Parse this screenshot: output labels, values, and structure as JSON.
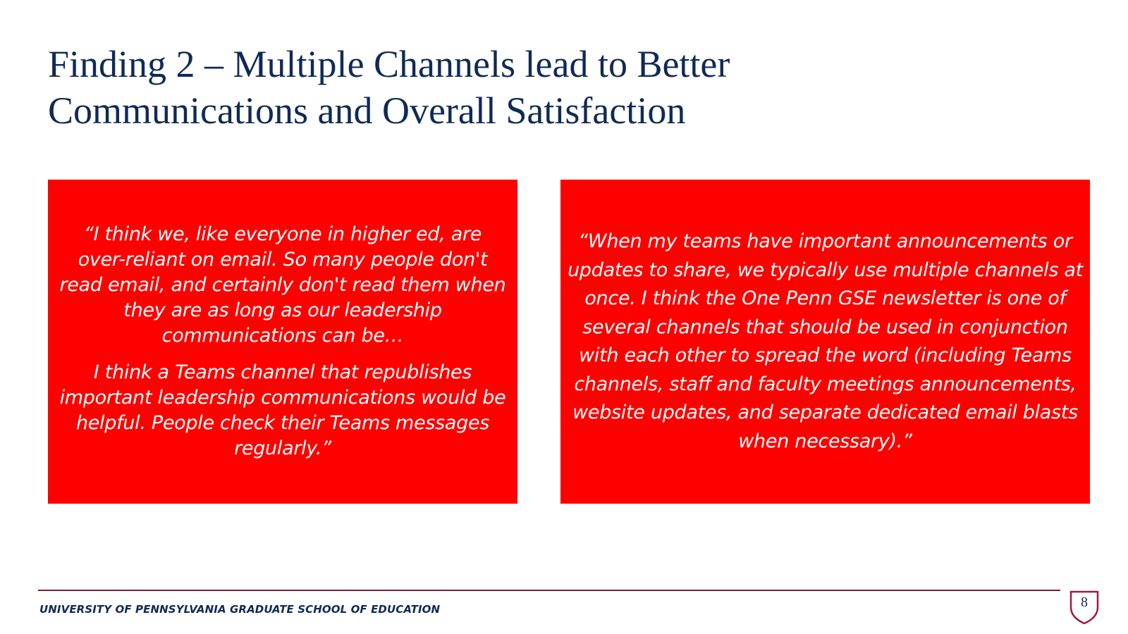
{
  "slide": {
    "title_line1": "Finding 2 – Multiple Channels lead to Better",
    "title_line2": "Communications and Overall Satisfaction",
    "quote_left": {
      "paragraph1": "“I think we, like everyone in higher ed, are over-reliant on email. So many people don't read email, and certainly don't read them when they are as long as our leadership communications can be…",
      "paragraph2": "I think a Teams channel that republishes important leadership communications would be helpful. People check their Teams messages regularly.”"
    },
    "quote_right": {
      "text": "“When my teams have important announcements or updates to share, we typically use multiple channels at once. I think the One Penn GSE newsletter is one of several channels that should be used in conjunction with each other to spread the word (including Teams channels, staff and faculty meetings announcements, website updates, and separate dedicated email blasts when necessary).”"
    },
    "footer": {
      "institution": "UNIVERSITY OF PENNSYLVANIA GRADUATE SCHOOL OF EDUCATION",
      "page_number": "8",
      "shield_icon": "penn-shield-icon"
    },
    "colors": {
      "title": "#0f2a55",
      "quote_background": "#ff0000",
      "quote_text": "#ffffff",
      "footer_rule": "#7a1e35",
      "shield_outline": "#a3193d"
    }
  }
}
